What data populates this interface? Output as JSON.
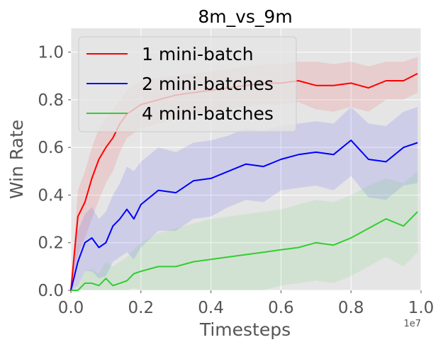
{
  "chart_data": {
    "type": "line",
    "title": "8m_vs_9m",
    "xlabel": "Timesteps",
    "ylabel": "Win Rate",
    "x_offset_label": "1e7",
    "xlim": [
      0.0,
      1.0
    ],
    "ylim": [
      0.0,
      1.1
    ],
    "xticks": [
      0.0,
      0.2,
      0.4,
      0.6,
      0.8,
      1.0
    ],
    "xtick_labels": [
      "0.0",
      "0.2",
      "0.4",
      "0.6",
      "0.8",
      "1.0"
    ],
    "yticks": [
      0.0,
      0.2,
      0.4,
      0.6,
      0.8,
      1.0
    ],
    "ytick_labels": [
      "0.0",
      "0.2",
      "0.4",
      "0.6",
      "0.8",
      "1.0"
    ],
    "grid": true,
    "legend_position": "top-left",
    "series": [
      {
        "name": "1 mini-batch",
        "color": "#ff0000",
        "x": [
          0.0,
          0.02,
          0.04,
          0.06,
          0.08,
          0.1,
          0.12,
          0.14,
          0.16,
          0.18,
          0.2,
          0.25,
          0.3,
          0.35,
          0.4,
          0.45,
          0.5,
          0.55,
          0.6,
          0.65,
          0.7,
          0.75,
          0.8,
          0.85,
          0.9,
          0.95,
          0.99
        ],
        "y": [
          0.0,
          0.31,
          0.37,
          0.47,
          0.55,
          0.6,
          0.64,
          0.7,
          0.74,
          0.76,
          0.78,
          0.8,
          0.82,
          0.83,
          0.84,
          0.85,
          0.86,
          0.87,
          0.87,
          0.88,
          0.86,
          0.86,
          0.87,
          0.85,
          0.88,
          0.88,
          0.91
        ],
        "band_low": [
          0.0,
          0.15,
          0.22,
          0.3,
          0.38,
          0.45,
          0.5,
          0.58,
          0.64,
          0.66,
          0.68,
          0.7,
          0.72,
          0.74,
          0.75,
          0.76,
          0.77,
          0.78,
          0.78,
          0.79,
          0.76,
          0.75,
          0.77,
          0.75,
          0.8,
          0.8,
          0.83
        ],
        "band_high": [
          0.02,
          0.42,
          0.5,
          0.6,
          0.68,
          0.72,
          0.76,
          0.8,
          0.84,
          0.86,
          0.88,
          0.89,
          0.9,
          0.91,
          0.92,
          0.93,
          0.94,
          0.95,
          0.95,
          0.96,
          0.96,
          0.95,
          0.96,
          0.94,
          0.96,
          0.96,
          0.98
        ]
      },
      {
        "name": "2 mini-batches",
        "color": "#0000ff",
        "x": [
          0.0,
          0.02,
          0.04,
          0.06,
          0.08,
          0.1,
          0.12,
          0.14,
          0.16,
          0.18,
          0.2,
          0.25,
          0.3,
          0.35,
          0.4,
          0.45,
          0.5,
          0.55,
          0.6,
          0.65,
          0.7,
          0.75,
          0.8,
          0.85,
          0.9,
          0.95,
          0.99
        ],
        "y": [
          0.0,
          0.12,
          0.2,
          0.22,
          0.18,
          0.2,
          0.27,
          0.3,
          0.34,
          0.3,
          0.36,
          0.42,
          0.41,
          0.46,
          0.47,
          0.5,
          0.53,
          0.52,
          0.55,
          0.57,
          0.58,
          0.57,
          0.63,
          0.55,
          0.54,
          0.6,
          0.62
        ],
        "band_low": [
          0.0,
          0.02,
          0.08,
          0.08,
          0.05,
          0.06,
          0.12,
          0.14,
          0.16,
          0.13,
          0.18,
          0.25,
          0.25,
          0.3,
          0.31,
          0.35,
          0.38,
          0.37,
          0.42,
          0.43,
          0.44,
          0.42,
          0.48,
          0.39,
          0.38,
          0.44,
          0.45
        ],
        "band_high": [
          0.02,
          0.25,
          0.32,
          0.35,
          0.3,
          0.33,
          0.4,
          0.45,
          0.52,
          0.5,
          0.54,
          0.6,
          0.58,
          0.62,
          0.63,
          0.65,
          0.68,
          0.67,
          0.69,
          0.7,
          0.71,
          0.7,
          0.77,
          0.7,
          0.69,
          0.75,
          0.77
        ]
      },
      {
        "name": "4 mini-batches",
        "color": "#32cd32",
        "x": [
          0.0,
          0.02,
          0.04,
          0.06,
          0.08,
          0.1,
          0.12,
          0.14,
          0.16,
          0.18,
          0.2,
          0.25,
          0.3,
          0.35,
          0.4,
          0.45,
          0.5,
          0.55,
          0.6,
          0.65,
          0.7,
          0.75,
          0.8,
          0.85,
          0.9,
          0.95,
          0.99
        ],
        "y": [
          0.0,
          0.0,
          0.03,
          0.03,
          0.02,
          0.05,
          0.02,
          0.03,
          0.04,
          0.07,
          0.08,
          0.1,
          0.1,
          0.12,
          0.13,
          0.14,
          0.15,
          0.16,
          0.17,
          0.18,
          0.2,
          0.19,
          0.22,
          0.26,
          0.3,
          0.27,
          0.33
        ],
        "band_low": [
          0.0,
          0.0,
          0.0,
          0.0,
          0.0,
          0.0,
          0.0,
          0.0,
          0.0,
          0.01,
          0.0,
          0.0,
          0.0,
          0.0,
          0.0,
          0.0,
          0.0,
          0.0,
          0.02,
          0.03,
          0.04,
          0.03,
          0.06,
          0.1,
          0.14,
          0.1,
          0.16
        ],
        "band_high": [
          0.0,
          0.02,
          0.08,
          0.09,
          0.07,
          0.12,
          0.1,
          0.12,
          0.14,
          0.17,
          0.2,
          0.24,
          0.26,
          0.28,
          0.3,
          0.31,
          0.32,
          0.33,
          0.34,
          0.36,
          0.38,
          0.37,
          0.4,
          0.44,
          0.47,
          0.45,
          0.5
        ]
      }
    ]
  }
}
